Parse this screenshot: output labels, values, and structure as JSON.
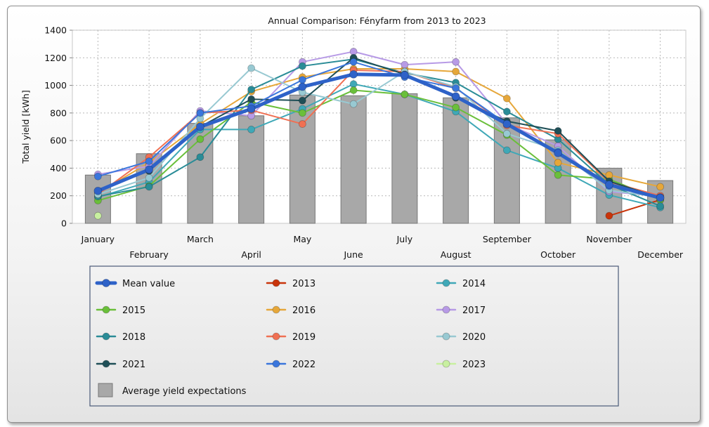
{
  "chart_data": {
    "type": "bar+line",
    "title": "Annual Comparison: Fényfarm from 2013 to 2023",
    "ylabel": "Total yield [kWh]",
    "xlabel": "",
    "ylim": [
      0,
      1400
    ],
    "yticks": [
      0,
      200,
      400,
      600,
      800,
      1000,
      1200,
      1400
    ],
    "grid": true,
    "categories": [
      "January",
      "February",
      "March",
      "April",
      "May",
      "June",
      "July",
      "August",
      "September",
      "October",
      "November",
      "December"
    ],
    "bars": {
      "name": "Average yield expectations",
      "color": "#a8a8a8",
      "values": [
        350,
        505,
        725,
        780,
        930,
        925,
        940,
        910,
        765,
        605,
        400,
        310
      ]
    },
    "series": [
      {
        "name": "Mean value",
        "color": "#2e62c8",
        "width": 5,
        "values": [
          235,
          390,
          700,
          830,
          990,
          1080,
          1075,
          920,
          720,
          510,
          280,
          185
        ]
      },
      {
        "name": "2013",
        "color": "#c9340a",
        "width": 2,
        "values": [
          null,
          null,
          null,
          null,
          null,
          null,
          null,
          null,
          null,
          null,
          55,
          170
        ]
      },
      {
        "name": "2014",
        "color": "#3fa8b7",
        "width": 2,
        "values": [
          190,
          300,
          680,
          680,
          830,
          1010,
          935,
          810,
          530,
          400,
          205,
          115
        ]
      },
      {
        "name": "2015",
        "color": "#6abf3a",
        "width": 2,
        "values": [
          165,
          270,
          610,
          880,
          800,
          965,
          935,
          840,
          640,
          350,
          320,
          170
        ]
      },
      {
        "name": "2016",
        "color": "#e6a73a",
        "width": 2,
        "values": [
          220,
          440,
          720,
          955,
          1060,
          1120,
          1120,
          1100,
          905,
          440,
          350,
          265
        ]
      },
      {
        "name": "2017",
        "color": "#b79ae6",
        "width": 2,
        "values": [
          355,
          415,
          815,
          780,
          1170,
          1245,
          1150,
          1170,
          720,
          560,
          230,
          195
        ]
      },
      {
        "name": "2018",
        "color": "#2a8c97",
        "width": 2,
        "values": [
          195,
          265,
          480,
          970,
          1140,
          1190,
          1090,
          1020,
          810,
          610,
          280,
          125
        ]
      },
      {
        "name": "2019",
        "color": "#f07053",
        "width": 2,
        "values": [
          210,
          480,
          800,
          820,
          720,
          1110,
          1100,
          980,
          710,
          650,
          300,
          200
        ]
      },
      {
        "name": "2020",
        "color": "#98c9d2",
        "width": 2,
        "values": [
          210,
          330,
          760,
          1125,
          950,
          865,
          1100,
          990,
          650,
          530,
          240,
          190
        ]
      },
      {
        "name": "2021",
        "color": "#1f4f57",
        "width": 2,
        "values": [
          235,
          380,
          700,
          900,
          890,
          1200,
          1080,
          910,
          740,
          670,
          305,
          185
        ]
      },
      {
        "name": "2022",
        "color": "#3a76dc",
        "width": 2,
        "values": [
          340,
          450,
          800,
          850,
          1040,
          1170,
          1060,
          980,
          720,
          520,
          270,
          190
        ]
      },
      {
        "name": "2023",
        "color": "#c8f0a0",
        "width": 2,
        "values": [
          55,
          null,
          null,
          null,
          null,
          null,
          null,
          null,
          null,
          null,
          null,
          null
        ]
      }
    ],
    "legend": {
      "position": "bottom",
      "entries": [
        "Mean value",
        "2013",
        "2014",
        "2015",
        "2016",
        "2017",
        "2018",
        "2019",
        "2020",
        "2021",
        "2022",
        "2023",
        "Average yield expectations"
      ]
    }
  }
}
